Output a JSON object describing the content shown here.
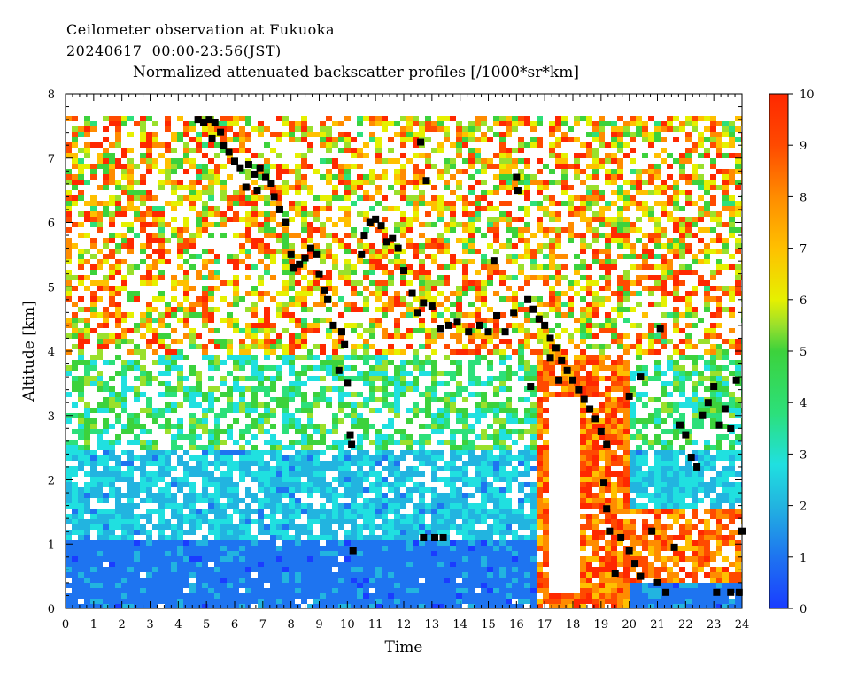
{
  "header": {
    "line1": "Ceilometer observation at Fukuoka",
    "line2": "20240617  00:00-23:56(JST)",
    "subtitle": "Normalized attenuated backscatter profiles [/1000*sr*km]"
  },
  "chart_data": {
    "type": "heatmap",
    "xlabel": "Time",
    "ylabel": "Altitude [km]",
    "xlim": [
      0,
      24
    ],
    "ylim": [
      0,
      8
    ],
    "x_ticks": [
      "0",
      "1",
      "2",
      "3",
      "4",
      "5",
      "6",
      "7",
      "8",
      "9",
      "10",
      "11",
      "12",
      "13",
      "14",
      "15",
      "16",
      "17",
      "18",
      "19",
      "20",
      "21",
      "22",
      "23",
      "24"
    ],
    "y_ticks": [
      "0",
      "1",
      "2",
      "3",
      "4",
      "5",
      "6",
      "7",
      "8"
    ],
    "colorbar": {
      "range": [
        0,
        10
      ],
      "ticks": [
        "0",
        "1",
        "2",
        "3",
        "4",
        "5",
        "6",
        "7",
        "8",
        "9",
        "10"
      ],
      "colors": [
        "#1a3cff",
        "#1e74f0",
        "#22b4e0",
        "#20e0e0",
        "#2ce07a",
        "#3cd23c",
        "#9ae02c",
        "#e6f000",
        "#ffc000",
        "#ff8c00",
        "#ff4a00",
        "#ff2800"
      ]
    },
    "cloud_base_markers": [
      [
        4.7,
        7.6
      ],
      [
        4.9,
        7.55
      ],
      [
        5.1,
        7.6
      ],
      [
        5.3,
        7.55
      ],
      [
        5.2,
        7.3
      ],
      [
        5.5,
        7.4
      ],
      [
        5.6,
        7.2
      ],
      [
        5.8,
        7.1
      ],
      [
        6.0,
        6.95
      ],
      [
        6.2,
        6.85
      ],
      [
        6.5,
        6.9
      ],
      [
        6.7,
        6.75
      ],
      [
        6.9,
        6.85
      ],
      [
        7.1,
        6.7
      ],
      [
        7.3,
        6.6
      ],
      [
        7.4,
        6.4
      ],
      [
        7.6,
        6.2
      ],
      [
        7.8,
        6.0
      ],
      [
        6.4,
        6.55
      ],
      [
        6.8,
        6.5
      ],
      [
        8.0,
        5.5
      ],
      [
        8.1,
        5.3
      ],
      [
        8.3,
        5.35
      ],
      [
        8.5,
        5.45
      ],
      [
        8.7,
        5.6
      ],
      [
        8.9,
        5.5
      ],
      [
        9.0,
        5.2
      ],
      [
        9.2,
        4.95
      ],
      [
        9.3,
        4.8
      ],
      [
        9.5,
        4.4
      ],
      [
        9.8,
        4.3
      ],
      [
        9.9,
        4.1
      ],
      [
        10.0,
        3.5
      ],
      [
        10.1,
        2.7
      ],
      [
        10.15,
        2.55
      ],
      [
        10.2,
        0.9
      ],
      [
        9.7,
        3.7
      ],
      [
        10.5,
        5.5
      ],
      [
        10.6,
        5.8
      ],
      [
        10.8,
        6.0
      ],
      [
        11.0,
        6.05
      ],
      [
        11.2,
        5.95
      ],
      [
        11.4,
        5.7
      ],
      [
        11.6,
        5.75
      ],
      [
        11.8,
        5.6
      ],
      [
        12.0,
        5.25
      ],
      [
        12.3,
        4.9
      ],
      [
        12.5,
        4.6
      ],
      [
        12.7,
        4.75
      ],
      [
        13.0,
        4.7
      ],
      [
        13.3,
        4.35
      ],
      [
        13.6,
        4.4
      ],
      [
        13.9,
        4.45
      ],
      [
        14.3,
        4.3
      ],
      [
        14.7,
        4.4
      ],
      [
        15.0,
        4.3
      ],
      [
        15.3,
        4.55
      ],
      [
        15.6,
        4.3
      ],
      [
        15.9,
        4.6
      ],
      [
        12.6,
        7.25
      ],
      [
        12.8,
        6.65
      ],
      [
        16.0,
        6.7
      ],
      [
        16.05,
        6.5
      ],
      [
        15.2,
        5.4
      ],
      [
        16.4,
        4.8
      ],
      [
        16.6,
        4.65
      ],
      [
        16.8,
        4.5
      ],
      [
        17.0,
        4.4
      ],
      [
        17.2,
        4.2
      ],
      [
        17.4,
        4.05
      ],
      [
        17.6,
        3.85
      ],
      [
        17.8,
        3.7
      ],
      [
        18.0,
        3.55
      ],
      [
        18.2,
        3.4
      ],
      [
        18.4,
        3.25
      ],
      [
        18.6,
        3.1
      ],
      [
        18.8,
        2.95
      ],
      [
        19.0,
        2.75
      ],
      [
        19.2,
        2.55
      ],
      [
        17.2,
        3.9
      ],
      [
        17.5,
        3.55
      ],
      [
        16.5,
        3.45
      ],
      [
        19.1,
        1.95
      ],
      [
        19.2,
        1.55
      ],
      [
        19.3,
        1.2
      ],
      [
        19.5,
        0.55
      ],
      [
        19.7,
        1.1
      ],
      [
        20.0,
        0.9
      ],
      [
        20.2,
        0.7
      ],
      [
        20.4,
        0.5
      ],
      [
        20.8,
        1.2
      ],
      [
        21.0,
        0.4
      ],
      [
        21.3,
        0.25
      ],
      [
        21.6,
        0.95
      ],
      [
        21.8,
        2.85
      ],
      [
        22.0,
        2.7
      ],
      [
        22.2,
        2.35
      ],
      [
        22.4,
        2.2
      ],
      [
        22.6,
        3.0
      ],
      [
        22.8,
        3.2
      ],
      [
        23.0,
        3.45
      ],
      [
        23.2,
        2.85
      ],
      [
        23.4,
        3.1
      ],
      [
        23.6,
        2.8
      ],
      [
        23.8,
        3.55
      ],
      [
        24.0,
        1.2
      ],
      [
        23.1,
        0.25
      ],
      [
        23.6,
        0.25
      ],
      [
        23.9,
        0.25
      ],
      [
        20.0,
        3.3
      ],
      [
        20.4,
        3.6
      ],
      [
        21.1,
        4.35
      ],
      [
        12.7,
        1.1
      ],
      [
        13.1,
        1.1
      ],
      [
        13.4,
        1.1
      ]
    ]
  }
}
